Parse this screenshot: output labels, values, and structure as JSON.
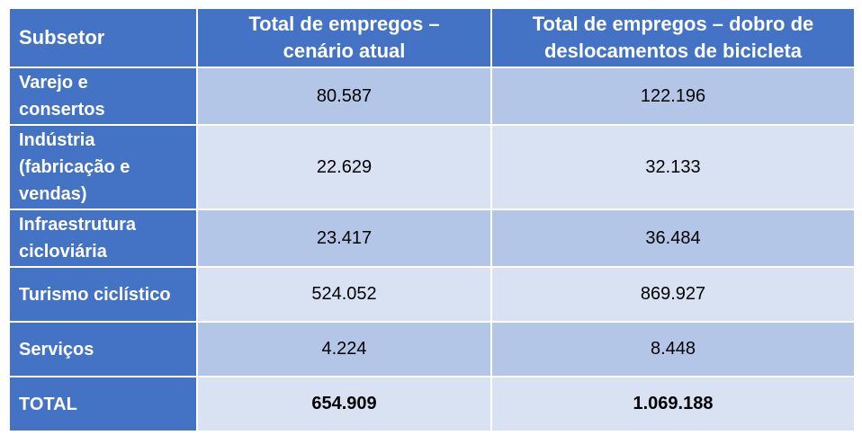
{
  "table": {
    "headers": [
      "Subsetor",
      "Total de empregos – cenário atual",
      "Total de empregos – dobro de deslocamentos de bicicleta"
    ],
    "header_lines": {
      "col2_line1": "Total de empregos –",
      "col2_line2": "cenário atual",
      "col3_line1": "Total de empregos – dobro de",
      "col3_line2": "deslocamentos de bicicleta"
    },
    "rows": [
      {
        "label_lines": [
          "Varejo e",
          "consertos"
        ],
        "atual": "80.587",
        "dobro": "122.196"
      },
      {
        "label_lines": [
          "Indústria",
          "(fabricação e",
          "vendas)"
        ],
        "atual": "22.629",
        "dobro": "32.133"
      },
      {
        "label_lines": [
          "Infraestrutura",
          "cicloviária"
        ],
        "atual": "23.417",
        "dobro": "36.484"
      },
      {
        "label_lines": [
          "Turismo ciclístico"
        ],
        "atual": "524.052",
        "dobro": "869.927"
      },
      {
        "label_lines": [
          "Serviços"
        ],
        "atual": "4.224",
        "dobro": "8.448"
      }
    ],
    "total": {
      "label": "TOTAL",
      "atual": "654.909",
      "dobro": "1.069.188"
    }
  },
  "colors": {
    "header_blue": "#4472c4",
    "band_dark": "#b4c6e7",
    "band_light": "#d9e2f3",
    "header_text": "#ffffff",
    "body_text": "#000000"
  }
}
